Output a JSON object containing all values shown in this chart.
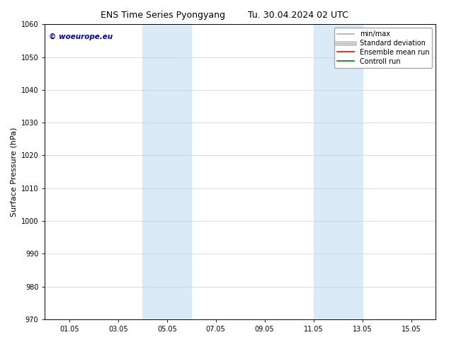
{
  "title_left": "ENS Time Series Pyongyang",
  "title_right": "Tu. 30.04.2024 02 UTC",
  "ylabel": "Surface Pressure (hPa)",
  "ylim": [
    970,
    1060
  ],
  "yticks": [
    970,
    980,
    990,
    1000,
    1010,
    1020,
    1030,
    1040,
    1050,
    1060
  ],
  "xtick_labels": [
    "01.05",
    "03.05",
    "05.05",
    "07.05",
    "09.05",
    "11.05",
    "13.05",
    "15.05"
  ],
  "xtick_positions": [
    1,
    3,
    5,
    7,
    9,
    11,
    13,
    15
  ],
  "xlim": [
    0,
    16
  ],
  "shaded_regions": [
    {
      "x_start": 4.0,
      "x_end": 6.0
    },
    {
      "x_start": 11.0,
      "x_end": 13.0
    }
  ],
  "shaded_color": "#daeaf7",
  "watermark_text": "© woeurope.eu",
  "watermark_color": "#0000cc",
  "legend_items": [
    {
      "label": "min/max",
      "color": "#aaaaaa",
      "lw": 1.2,
      "style": "solid"
    },
    {
      "label": "Standard deviation",
      "color": "#cccccc",
      "lw": 5,
      "style": "solid"
    },
    {
      "label": "Ensemble mean run",
      "color": "red",
      "lw": 1.2,
      "style": "solid"
    },
    {
      "label": "Controll run",
      "color": "green",
      "lw": 1.2,
      "style": "solid"
    }
  ],
  "bg_color": "#ffffff",
  "grid_color": "#cccccc",
  "title_fontsize": 9,
  "tick_fontsize": 7,
  "ylabel_fontsize": 8,
  "watermark_fontsize": 7.5,
  "legend_fontsize": 7
}
